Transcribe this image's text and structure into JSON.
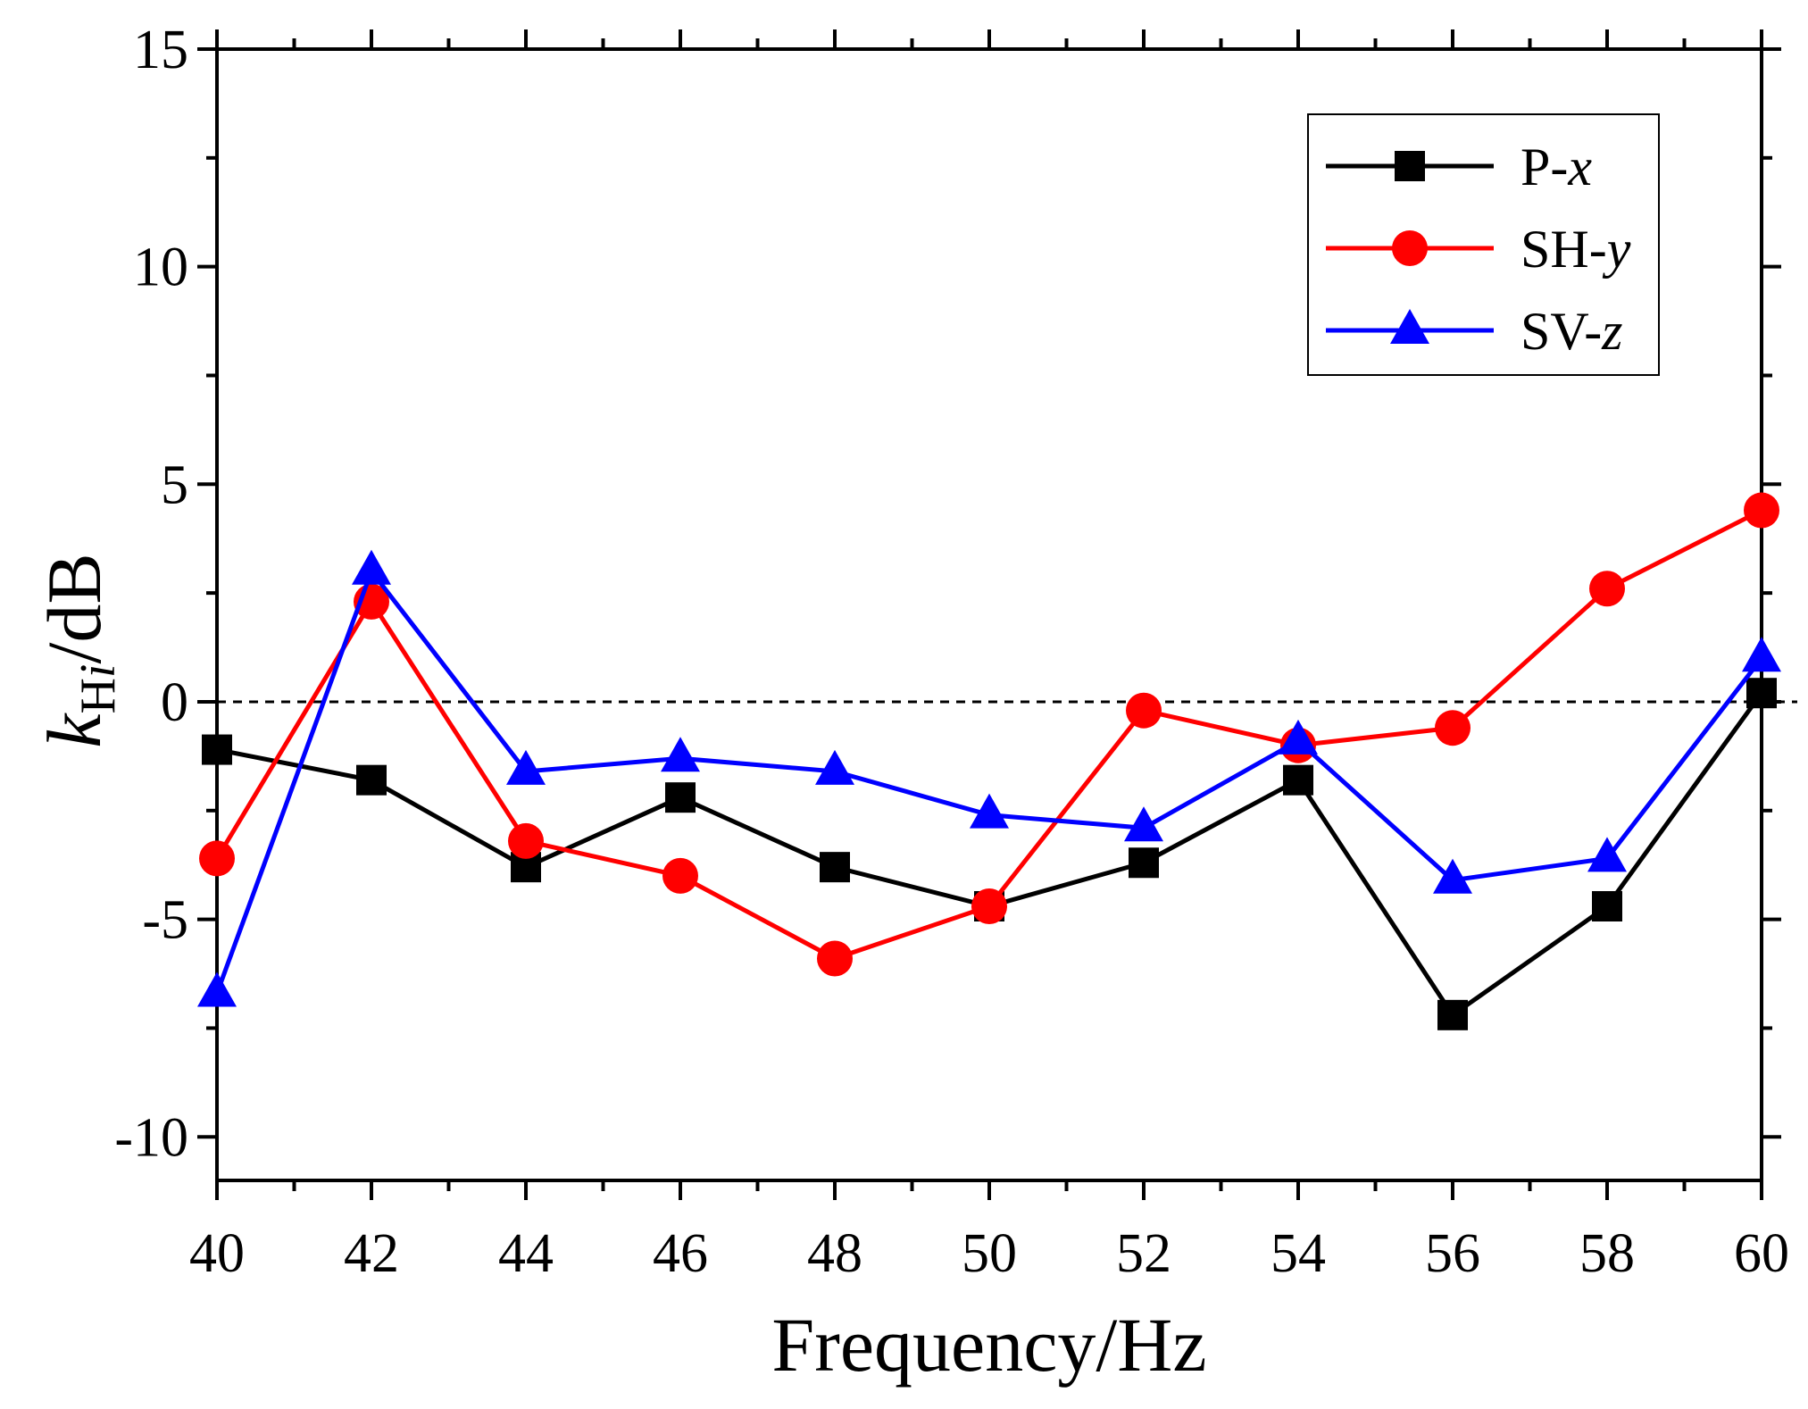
{
  "chart_data": {
    "type": "line",
    "xlabel": "Frequency/Hz",
    "ylabel": {
      "base": "k",
      "subscript": "H",
      "subscript_italic": "i",
      "unit": "/dB"
    },
    "xlim": [
      40,
      60
    ],
    "ylim": [
      -11,
      15
    ],
    "x_ticks": [
      40,
      42,
      44,
      46,
      48,
      50,
      52,
      54,
      56,
      58,
      60
    ],
    "y_ticks": [
      -10,
      -5,
      0,
      5,
      10,
      15
    ],
    "x_tick_labels": [
      "40",
      "42",
      "44",
      "46",
      "48",
      "50",
      "52",
      "54",
      "56",
      "58",
      "60"
    ],
    "y_tick_labels": [
      "-10",
      "-5",
      "0",
      "5",
      "10",
      "15"
    ],
    "reference_line": {
      "y": 0,
      "style": "dashed"
    },
    "grid": false,
    "legend_position": "top-right",
    "x": [
      40,
      42,
      44,
      46,
      48,
      50,
      52,
      54,
      56,
      58,
      60
    ],
    "series": [
      {
        "name": "P-x",
        "name_prefix": "P-",
        "name_var": "x",
        "color": "#000000",
        "marker": "square",
        "values": [
          -1.1,
          -1.8,
          -3.8,
          -2.2,
          -3.8,
          -4.7,
          -3.7,
          -1.8,
          -7.2,
          -4.7,
          0.2
        ]
      },
      {
        "name": "SH-y",
        "name_prefix": "SH-",
        "name_var": "y",
        "color": "#ff0000",
        "marker": "circle",
        "values": [
          -3.6,
          2.3,
          -3.2,
          -4.0,
          -5.9,
          -4.7,
          -0.2,
          -1.0,
          -0.6,
          2.6,
          4.4
        ]
      },
      {
        "name": "SV-z",
        "name_prefix": "SV-",
        "name_var": "z",
        "color": "#0000ff",
        "marker": "triangle",
        "values": [
          -6.7,
          3.0,
          -1.6,
          -1.3,
          -1.6,
          -2.6,
          -2.9,
          -0.9,
          -4.1,
          -3.6,
          1.0
        ]
      }
    ]
  }
}
